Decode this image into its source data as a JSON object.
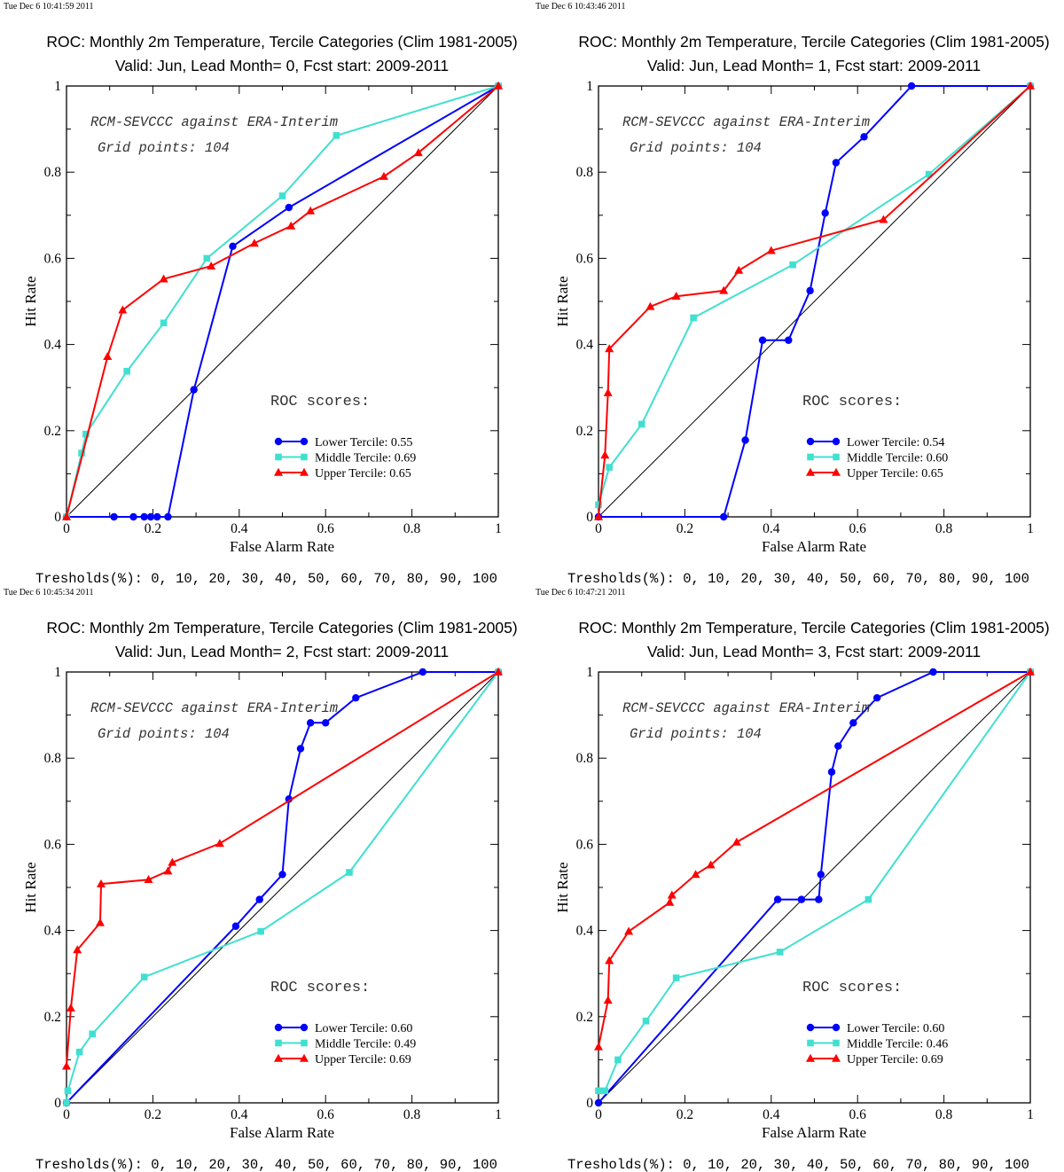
{
  "charts": [
    {
      "timestamp": "Tue Dec  6 10:41:59 2011",
      "title": "ROC: Monthly 2m Temperature, Tercile Categories (Clim 1981-2005)",
      "subtitle": "Valid: Jun, Lead Month= 0, Fcst start: 2009-2011",
      "annotation_line1": "RCM-SEVCCC against ERA-Interim",
      "annotation_line2": "Grid points:  104",
      "roc_title": "ROC scores:",
      "thresholds": "Tresholds(%): 0, 10, 20, 30, 40, 50, 60, 70, 80, 90, 100",
      "chart_data": {
        "type": "line",
        "xlabel": "False Alarm Rate",
        "ylabel": "Hit Rate",
        "xlim": [
          0,
          1
        ],
        "ylim": [
          0,
          1
        ],
        "x_ticks": [
          "0",
          "0.2",
          "0.4",
          "0.6",
          "0.8",
          "1"
        ],
        "y_ticks": [
          "0",
          "0.2",
          "0.4",
          "0.6",
          "0.8",
          "1"
        ],
        "legend_position": "bottom-right",
        "diagonal": true,
        "series": [
          {
            "name": "Lower Tercile: 0.55",
            "color": "#0000ff",
            "marker": "circle",
            "x": [
              0,
              0.11,
              0.155,
              0.18,
              0.195,
              0.21,
              0.235,
              0.295,
              0.385,
              0.515,
              1
            ],
            "y": [
              0,
              0,
              0,
              0,
              0,
              0,
              0,
              0.295,
              0.628,
              0.718,
              1
            ]
          },
          {
            "name": "Middle Tercile: 0.69",
            "color": "#40e0d0",
            "marker": "square",
            "x": [
              0,
              0.035,
              0.045,
              0.14,
              0.225,
              0.325,
              0.5,
              0.625,
              1
            ],
            "y": [
              0,
              0.148,
              0.192,
              0.338,
              0.45,
              0.6,
              0.745,
              0.885,
              1
            ]
          },
          {
            "name": "Upper Tercile: 0.65",
            "color": "#ff0000",
            "marker": "triangle",
            "x": [
              0,
              0.095,
              0.13,
              0.225,
              0.335,
              0.435,
              0.52,
              0.565,
              0.735,
              0.815,
              1
            ],
            "y": [
              0,
              0.372,
              0.48,
              0.552,
              0.582,
              0.635,
              0.675,
              0.71,
              0.79,
              0.845,
              1
            ]
          }
        ]
      }
    },
    {
      "timestamp": "Tue Dec  6 10:43:46 2011",
      "title": "ROC: Monthly 2m Temperature, Tercile Categories (Clim 1981-2005)",
      "subtitle": "Valid: Jun, Lead Month= 1, Fcst start: 2009-2011",
      "annotation_line1": "RCM-SEVCCC against ERA-Interim",
      "annotation_line2": "Grid points:  104",
      "roc_title": "ROC scores:",
      "thresholds": "Tresholds(%): 0, 10, 20, 30, 40, 50, 60, 70, 80, 90, 100",
      "chart_data": {
        "type": "line",
        "xlabel": "False Alarm Rate",
        "ylabel": "Hit Rate",
        "xlim": [
          0,
          1
        ],
        "ylim": [
          0,
          1
        ],
        "x_ticks": [
          "0",
          "0.2",
          "0.4",
          "0.6",
          "0.8",
          "1"
        ],
        "y_ticks": [
          "0",
          "0.2",
          "0.4",
          "0.6",
          "0.8",
          "1"
        ],
        "legend_position": "bottom-right",
        "diagonal": true,
        "series": [
          {
            "name": "Lower Tercile: 0.54",
            "color": "#0000ff",
            "marker": "circle",
            "x": [
              0,
              0.29,
              0.34,
              0.38,
              0.44,
              0.49,
              0.525,
              0.55,
              0.615,
              0.725,
              1
            ],
            "y": [
              0,
              0,
              0.178,
              0.41,
              0.41,
              0.525,
              0.705,
              0.822,
              0.882,
              1,
              1
            ]
          },
          {
            "name": "Middle Tercile: 0.60",
            "color": "#40e0d0",
            "marker": "square",
            "x": [
              0,
              0.025,
              0.1,
              0.22,
              0.45,
              0.765,
              1
            ],
            "y": [
              0.028,
              0.115,
              0.215,
              0.462,
              0.585,
              0.795,
              1
            ]
          },
          {
            "name": "Upper Tercile: 0.65",
            "color": "#ff0000",
            "marker": "triangle",
            "x": [
              0,
              0.015,
              0.022,
              0.025,
              0.12,
              0.18,
              0.29,
              0.325,
              0.4,
              0.66,
              1
            ],
            "y": [
              0,
              0.143,
              0.288,
              0.39,
              0.488,
              0.512,
              0.525,
              0.572,
              0.618,
              0.69,
              1
            ]
          }
        ]
      }
    },
    {
      "timestamp": "Tue Dec  6 10:45:34 2011",
      "title": "ROC: Monthly 2m Temperature, Tercile Categories (Clim 1981-2005)",
      "subtitle": "Valid: Jun, Lead Month= 2, Fcst start: 2009-2011",
      "annotation_line1": "RCM-SEVCCC against ERA-Interim",
      "annotation_line2": "Grid points:  104",
      "roc_title": "ROC scores:",
      "thresholds": "Tresholds(%): 0, 10, 20, 30, 40, 50, 60, 70, 80, 90, 100",
      "chart_data": {
        "type": "line",
        "xlabel": "False Alarm Rate",
        "ylabel": "Hit Rate",
        "xlim": [
          0,
          1
        ],
        "ylim": [
          0,
          1
        ],
        "x_ticks": [
          "0",
          "0.2",
          "0.4",
          "0.6",
          "0.8",
          "1"
        ],
        "y_ticks": [
          "0",
          "0.2",
          "0.4",
          "0.6",
          "0.8",
          "1"
        ],
        "legend_position": "bottom-right",
        "diagonal": true,
        "series": [
          {
            "name": "Lower Tercile: 0.60",
            "color": "#0000ff",
            "marker": "circle",
            "x": [
              0,
              0.392,
              0.447,
              0.5,
              0.515,
              0.542,
              0.565,
              0.6,
              0.67,
              0.825,
              1
            ],
            "y": [
              0,
              0.41,
              0.472,
              0.53,
              0.705,
              0.822,
              0.882,
              0.882,
              0.94,
              1,
              1
            ]
          },
          {
            "name": "Middle Tercile: 0.49",
            "color": "#40e0d0",
            "marker": "square",
            "x": [
              0,
              0.003,
              0.03,
              0.06,
              0.18,
              0.45,
              0.655,
              1
            ],
            "y": [
              0,
              0.028,
              0.118,
              0.16,
              0.292,
              0.398,
              0.535,
              1
            ]
          },
          {
            "name": "Upper Tercile: 0.69",
            "color": "#ff0000",
            "marker": "triangle",
            "x": [
              0,
              0.01,
              0.025,
              0.078,
              0.08,
              0.19,
              0.235,
              0.245,
              0.355,
              1
            ],
            "y": [
              0.085,
              0.22,
              0.355,
              0.418,
              0.508,
              0.518,
              0.538,
              0.558,
              0.602,
              1
            ]
          }
        ]
      }
    },
    {
      "timestamp": "Tue Dec  6 10:47:21 2011",
      "title": "ROC: Monthly 2m Temperature, Tercile Categories (Clim 1981-2005)",
      "subtitle": "Valid: Jun, Lead Month= 3, Fcst start: 2009-2011",
      "annotation_line1": "RCM-SEVCCC against ERA-Interim",
      "annotation_line2": "Grid points:  104",
      "roc_title": "ROC scores:",
      "thresholds": "Tresholds(%): 0, 10, 20, 30, 40, 50, 60, 70, 80, 90, 100",
      "chart_data": {
        "type": "line",
        "xlabel": "False Alarm Rate",
        "ylabel": "Hit Rate",
        "xlim": [
          0,
          1
        ],
        "ylim": [
          0,
          1
        ],
        "x_ticks": [
          "0",
          "0.2",
          "0.4",
          "0.6",
          "0.8",
          "1"
        ],
        "y_ticks": [
          "0",
          "0.2",
          "0.4",
          "0.6",
          "0.8",
          "1"
        ],
        "legend_position": "bottom-right",
        "diagonal": true,
        "series": [
          {
            "name": "Lower Tercile: 0.60",
            "color": "#0000ff",
            "marker": "circle",
            "x": [
              0,
              0.415,
              0.47,
              0.51,
              0.515,
              0.54,
              0.555,
              0.59,
              0.645,
              0.775,
              1
            ],
            "y": [
              0,
              0.472,
              0.472,
              0.472,
              0.53,
              0.768,
              0.828,
              0.882,
              0.94,
              1,
              1
            ]
          },
          {
            "name": "Middle Tercile: 0.46",
            "color": "#40e0d0",
            "marker": "square",
            "x": [
              0,
              0.015,
              0.045,
              0.11,
              0.18,
              0.42,
              0.625,
              1
            ],
            "y": [
              0.028,
              0.028,
              0.1,
              0.19,
              0.29,
              0.35,
              0.472,
              1
            ]
          },
          {
            "name": "Upper Tercile: 0.69",
            "color": "#ff0000",
            "marker": "triangle",
            "x": [
              0,
              0.022,
              0.025,
              0.07,
              0.165,
              0.17,
              0.225,
              0.26,
              0.32,
              1
            ],
            "y": [
              0.13,
              0.238,
              0.33,
              0.398,
              0.465,
              0.482,
              0.53,
              0.552,
              0.605,
              1
            ]
          }
        ]
      }
    }
  ]
}
